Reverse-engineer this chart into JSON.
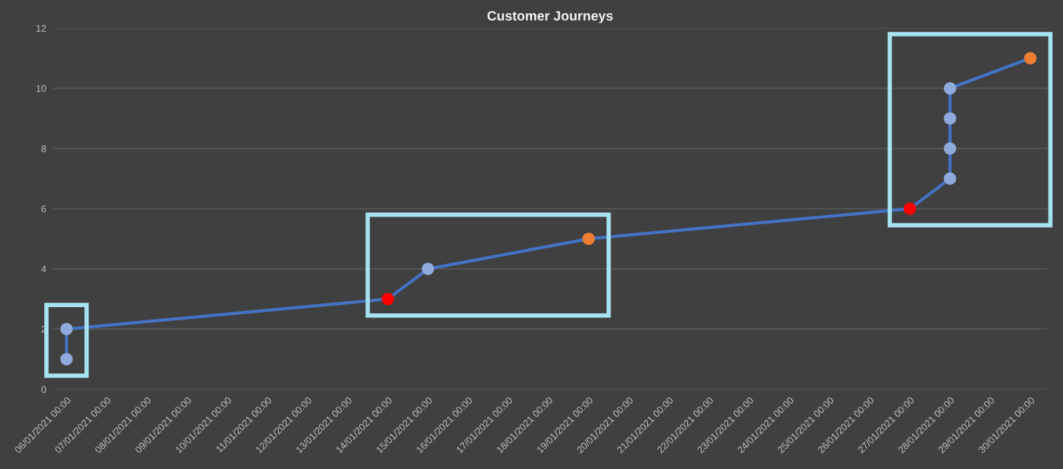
{
  "chart_data": {
    "type": "line",
    "title": "Customer Journeys",
    "x": [
      "2021-01-06T00:00",
      "2021-01-06T00:00",
      "2021-01-14T00:00",
      "2021-01-15T00:00",
      "2021-01-19T00:00",
      "2021-01-27T00:00",
      "2021-01-28T00:00",
      "2021-01-28T00:00",
      "2021-01-28T00:00",
      "2021-01-28T00:00",
      "2021-01-30T00:00"
    ],
    "series": [
      {
        "color": "#4472c4",
        "values": [
          1,
          2,
          3,
          4,
          5,
          6,
          7,
          8,
          9,
          10,
          11
        ],
        "colors": [
          "#8faadc",
          "#8faadc",
          "#ff0000",
          "#8faadc",
          "#ed7d31",
          "#ff0000",
          "#8faadc",
          "#8faadc",
          "#8faadc",
          "#8faadc",
          "#ed7d31"
        ]
      }
    ],
    "marker": "circle",
    "grid": "y",
    "ylim": [
      0,
      12
    ],
    "yticks": [
      0,
      2,
      4,
      6,
      8,
      10,
      12
    ],
    "xlim": [
      "2021-01-05T16:00",
      "2021-01-30T10:00"
    ],
    "xticks": [
      {
        "value": "2021-01-06",
        "label": "06/01/2021 00:00"
      },
      {
        "value": "2021-01-07",
        "label": "07/01/2021 00:00"
      },
      {
        "value": "2021-01-08",
        "label": "08/01/2021 00:00"
      },
      {
        "value": "2021-01-09",
        "label": "09/01/2021 00:00"
      },
      {
        "value": "2021-01-10",
        "label": "10/01/2021 00:00"
      },
      {
        "value": "2021-01-11",
        "label": "11/01/2021 00:00"
      },
      {
        "value": "2021-01-12",
        "label": "12/01/2021 00:00"
      },
      {
        "value": "2021-01-13",
        "label": "13/01/2021 00:00"
      },
      {
        "value": "2021-01-14",
        "label": "14/01/2021 00:00"
      },
      {
        "value": "2021-01-15",
        "label": "15/01/2021 00:00"
      },
      {
        "value": "2021-01-16",
        "label": "16/01/2021 00:00"
      },
      {
        "value": "2021-01-17",
        "label": "17/01/2021 00:00"
      },
      {
        "value": "2021-01-18",
        "label": "18/01/2021 00:00"
      },
      {
        "value": "2021-01-19",
        "label": "19/01/2021 00:00"
      },
      {
        "value": "2021-01-20",
        "label": "20/01/2021 00:00"
      },
      {
        "value": "2021-01-21",
        "label": "21/01/2021 00:00"
      },
      {
        "value": "2021-01-22",
        "label": "22/01/2021 00:00"
      },
      {
        "value": "2021-01-23",
        "label": "23/01/2021 00:00"
      },
      {
        "value": "2021-01-24",
        "label": "24/01/2021 00:00"
      },
      {
        "value": "2021-01-25",
        "label": "25/01/2021 00:00"
      },
      {
        "value": "2021-01-26",
        "label": "26/01/2021 00:00"
      },
      {
        "value": "2021-01-27",
        "label": "27/01/2021 00:00"
      },
      {
        "value": "2021-01-28",
        "label": "28/01/2021 00:00"
      },
      {
        "value": "2021-01-29",
        "label": "29/01/2021 00:00"
      },
      {
        "value": "2021-01-30",
        "label": "30/01/2021 00:00"
      }
    ]
  }
}
